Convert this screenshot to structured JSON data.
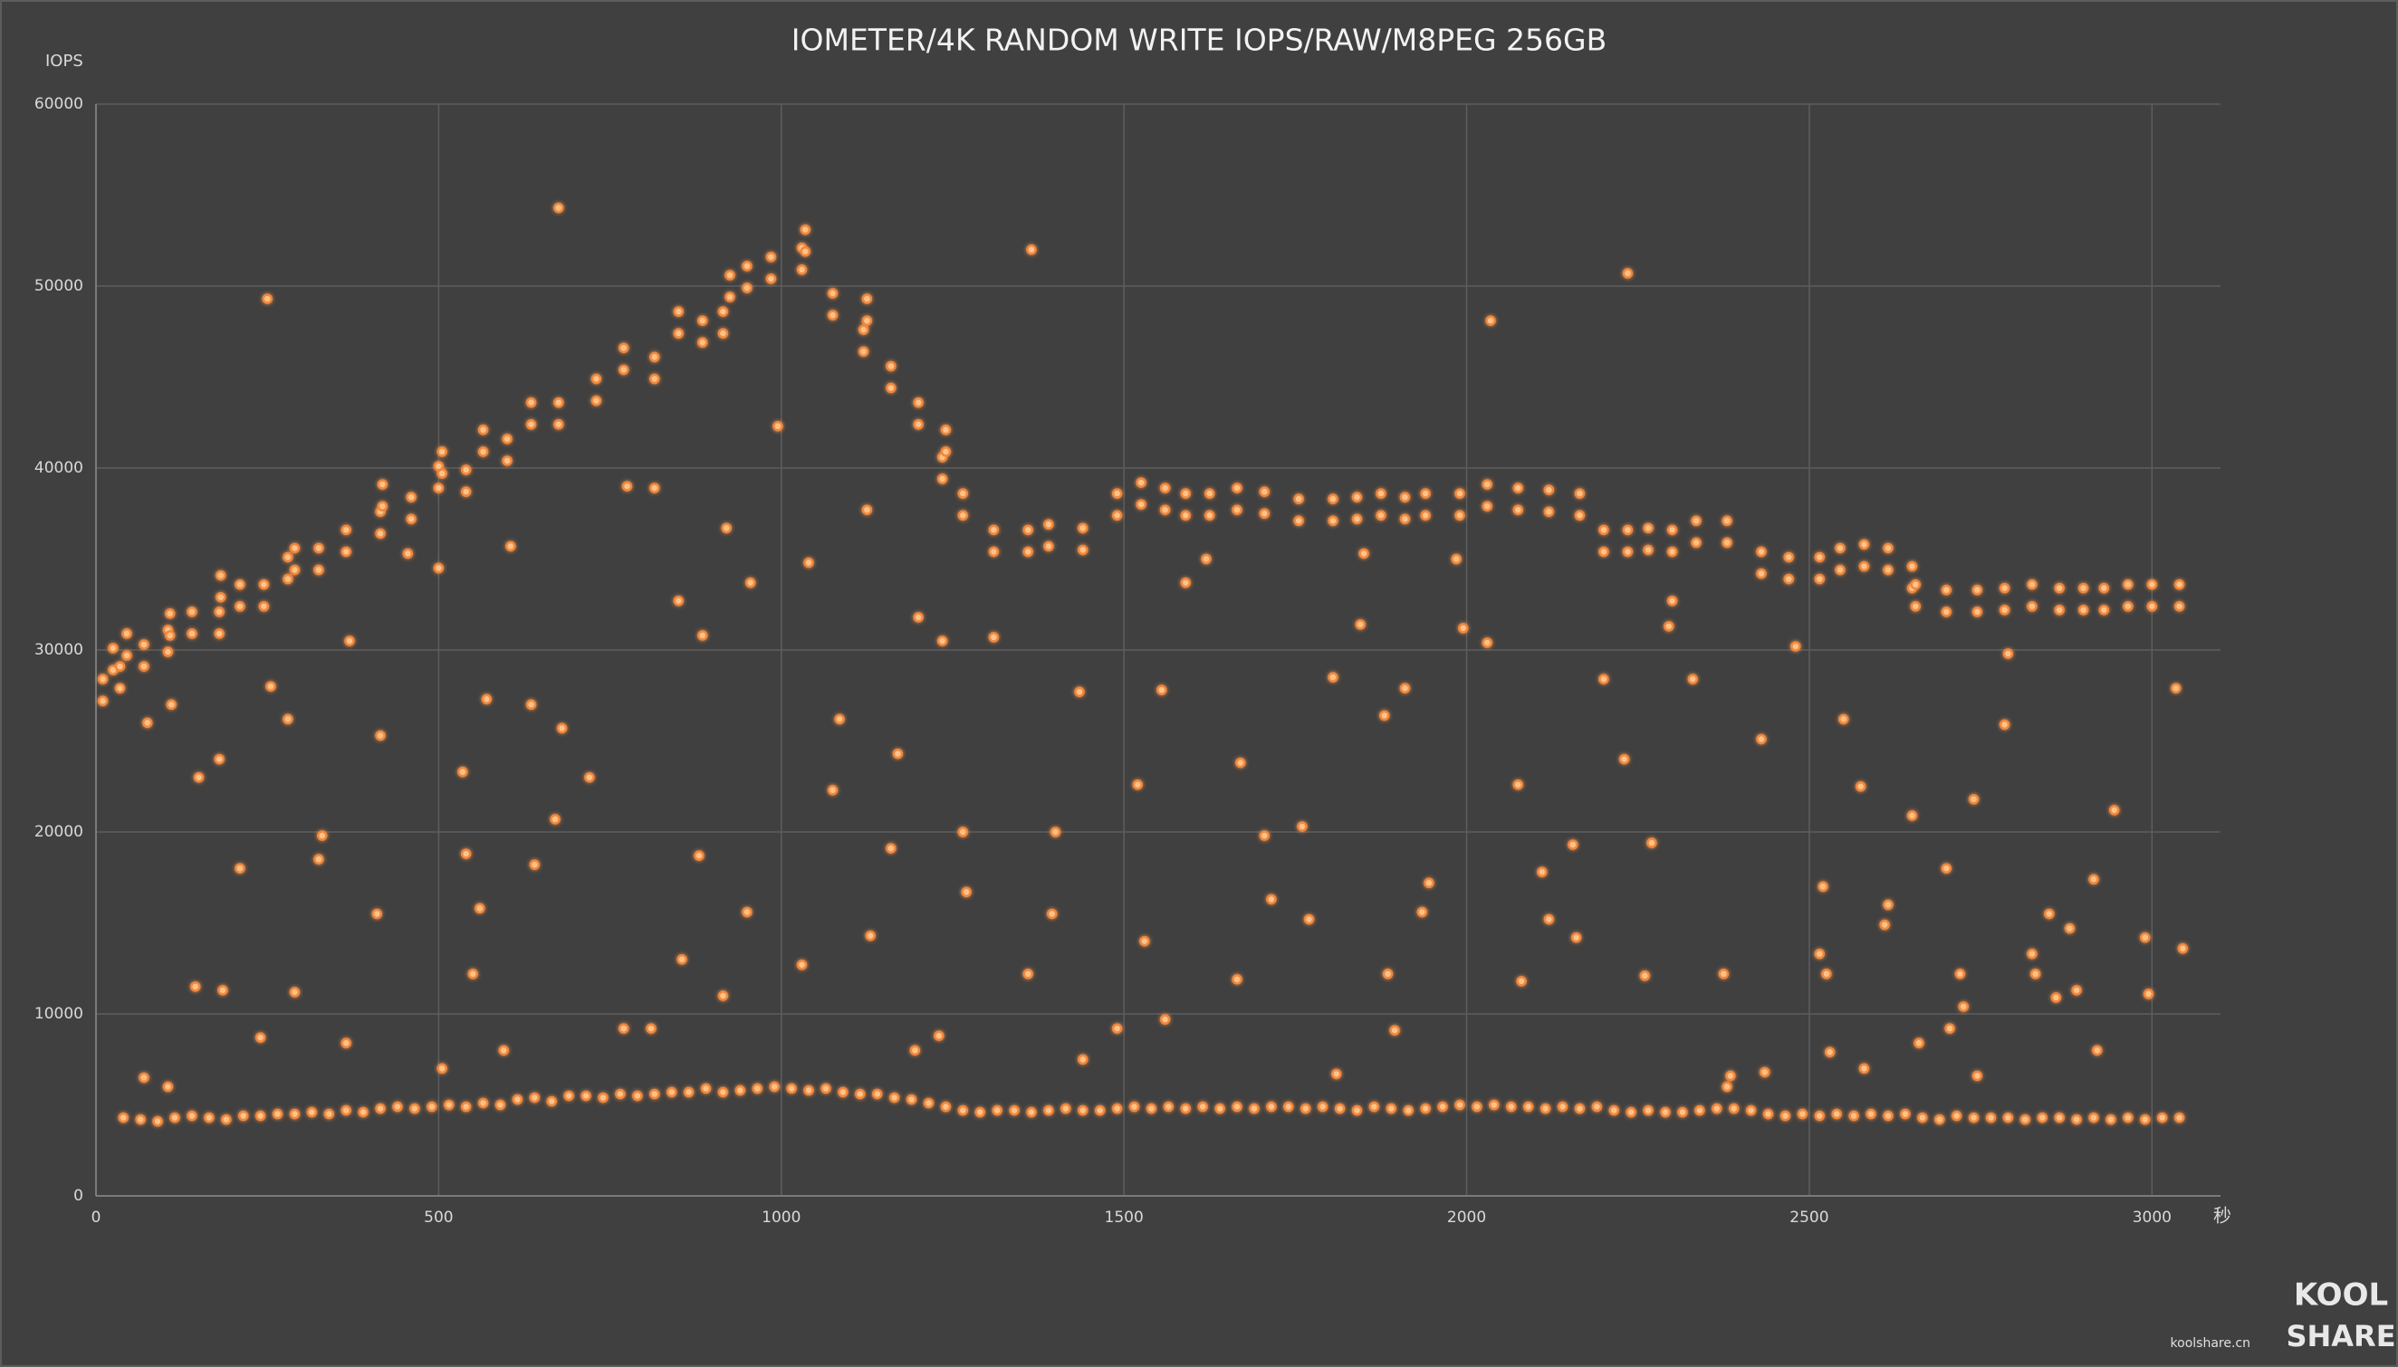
{
  "chart_data": {
    "type": "scatter",
    "title": "IOMETER/4K RANDOM WRITE IOPS/RAW/M8PEG 256GB",
    "y_label": "IOPS",
    "x_label": "秒",
    "watermark": {
      "logo_top": "KOOL",
      "logo_bottom": "SHARE",
      "site": "koolshare.cn"
    },
    "color": "#f0883c",
    "grid": true,
    "xlim": [
      0,
      3100
    ],
    "xticks": [
      0,
      500,
      1000,
      1500,
      2000,
      2500,
      3000
    ],
    "ylim": [
      0,
      60000
    ],
    "yticks": [
      0,
      10000,
      20000,
      30000,
      40000,
      50000,
      60000
    ],
    "x": [
      40,
      65,
      90,
      115,
      140,
      165,
      190,
      215,
      240,
      265,
      290,
      315,
      340,
      365,
      390,
      415,
      440,
      465,
      490,
      515,
      540,
      565,
      590,
      615,
      640,
      665,
      690,
      715,
      740,
      765,
      790,
      815,
      840,
      865,
      890,
      915,
      940,
      965,
      990,
      1015,
      1040,
      1065,
      1090,
      1115,
      1140,
      1165,
      1190,
      1215,
      1240,
      1265,
      1290,
      1315,
      1340,
      1365,
      1390,
      1415,
      1440,
      1465,
      1490,
      1515,
      1540,
      1565,
      1590,
      1615,
      1640,
      1665,
      1690,
      1715,
      1740,
      1765,
      1790,
      1815,
      1840,
      1865,
      1890,
      1915,
      1940,
      1965,
      1990,
      2015,
      2040,
      2065,
      2090,
      2115,
      2140,
      2165,
      2190,
      2215,
      2240,
      2265,
      2290,
      2315,
      2340,
      2365,
      2390,
      2415,
      2440,
      2465,
      2490,
      2515,
      2540,
      2565,
      2590,
      2615,
      2640,
      2665,
      2690,
      2715,
      2740,
      2765,
      2790,
      2815,
      2840,
      2865,
      2890,
      2915,
      2940,
      2965,
      2990,
      3015,
      3040,
      10,
      10,
      25,
      25,
      35,
      35,
      45,
      45,
      70,
      70,
      105,
      105,
      108,
      108,
      140,
      140,
      180,
      180,
      182,
      182,
      210,
      210,
      245,
      245,
      280,
      280,
      290,
      290,
      325,
      325,
      365,
      365,
      415,
      415,
      418,
      418,
      460,
      460,
      500,
      500,
      505,
      505,
      540,
      540,
      565,
      565,
      600,
      600,
      635,
      635,
      675,
      675,
      730,
      730,
      770,
      770,
      815,
      815,
      850,
      850,
      885,
      885,
      915,
      915,
      925,
      925,
      950,
      950,
      985,
      985,
      1030,
      1030,
      1035,
      1035,
      1075,
      1075,
      1120,
      1120,
      1125,
      1125,
      1160,
      1160,
      1200,
      1200,
      1235,
      1235,
      1240,
      1240,
      1265,
      1265,
      1310,
      1310,
      1360,
      1360,
      1390,
      1390,
      1440,
      1440,
      1490,
      1490,
      1525,
      1525,
      1560,
      1560,
      1590,
      1590,
      1625,
      1625,
      1665,
      1665,
      1705,
      1705,
      1755,
      1755,
      1805,
      1805,
      1840,
      1840,
      1875,
      1875,
      1910,
      1910,
      1940,
      1940,
      1990,
      1990,
      2030,
      2030,
      2075,
      2075,
      2120,
      2120,
      2165,
      2165,
      2200,
      2200,
      2235,
      2235,
      2265,
      2265,
      2300,
      2300,
      2335,
      2335,
      2380,
      2380,
      2430,
      2430,
      2470,
      2470,
      2515,
      2515,
      2545,
      2545,
      2580,
      2580,
      2615,
      2615,
      2650,
      2650,
      2655,
      2655,
      2700,
      2700,
      2745,
      2745,
      2785,
      2785,
      2825,
      2825,
      2865,
      2865,
      2900,
      2900,
      2930,
      2930,
      2965,
      2965,
      3000,
      3000,
      3040,
      3040,
      75,
      70,
      105,
      110,
      145,
      150,
      180,
      185,
      210,
      240,
      250,
      255,
      280,
      290,
      325,
      330,
      365,
      370,
      410,
      415,
      455,
      500,
      505,
      535,
      540,
      550,
      560,
      570,
      595,
      605,
      635,
      640,
      670,
      675,
      680,
      720,
      770,
      775,
      810,
      815,
      850,
      855,
      880,
      885,
      915,
      920,
      950,
      955,
      995,
      1030,
      1040,
      1075,
      1085,
      1125,
      1130,
      1160,
      1170,
      1195,
      1200,
      1230,
      1235,
      1265,
      1270,
      1310,
      1360,
      1365,
      1395,
      1400,
      1435,
      1440,
      1490,
      1520,
      1530,
      1555,
      1560,
      1590,
      1620,
      1665,
      1670,
      1705,
      1715,
      1760,
      1770,
      1805,
      1810,
      1845,
      1850,
      1880,
      1885,
      1895,
      1910,
      1935,
      1945,
      1985,
      1995,
      2030,
      2035,
      2075,
      2080,
      2110,
      2120,
      2155,
      2160,
      2200,
      2230,
      2235,
      2260,
      2270,
      2295,
      2300,
      2330,
      2375,
      2385,
      2430,
      2435,
      2480,
      2515,
      2520,
      2525,
      2530,
      2550,
      2575,
      2580,
      2610,
      2615,
      2650,
      2660,
      2700,
      2705,
      2720,
      2725,
      2740,
      2745,
      2785,
      2790,
      2825,
      2830,
      2850,
      2860,
      2880,
      2890,
      2915,
      2920,
      2945,
      2990,
      2995,
      3035,
      3045,
      2380
    ],
    "values": [
      4300,
      4200,
      4100,
      4300,
      4400,
      4300,
      4200,
      4400,
      4400,
      4500,
      4500,
      4600,
      4500,
      4700,
      4600,
      4800,
      4900,
      4800,
      4900,
      5000,
      4900,
      5100,
      5000,
      5300,
      5400,
      5200,
      5500,
      5500,
      5400,
      5600,
      5500,
      5600,
      5700,
      5700,
      5900,
      5700,
      5800,
      5900,
      6000,
      5900,
      5800,
      5900,
      5700,
      5600,
      5600,
      5400,
      5300,
      5100,
      4900,
      4700,
      4600,
      4700,
      4700,
      4600,
      4700,
      4800,
      4700,
      4700,
      4800,
      4900,
      4800,
      4900,
      4800,
      4900,
      4800,
      4900,
      4800,
      4900,
      4900,
      4800,
      4900,
      4800,
      4700,
      4900,
      4800,
      4700,
      4800,
      4900,
      5000,
      4900,
      5000,
      4900,
      4900,
      4800,
      4900,
      4800,
      4900,
      4700,
      4600,
      4700,
      4600,
      4600,
      4700,
      4800,
      4800,
      4700,
      4500,
      4400,
      4500,
      4400,
      4500,
      4400,
      4500,
      4400,
      4500,
      4300,
      4200,
      4400,
      4300,
      4300,
      4300,
      4200,
      4300,
      4300,
      4200,
      4300,
      4200,
      4300,
      4200,
      4300,
      4300,
      27200,
      28400,
      28900,
      30100,
      27900,
      29100,
      29700,
      30900,
      29100,
      30300,
      29900,
      31100,
      30800,
      32000,
      30900,
      32100,
      30900,
      32100,
      32900,
      34100,
      32400,
      33600,
      32400,
      33600,
      33900,
      35100,
      34400,
      35600,
      34400,
      35600,
      35400,
      36600,
      36400,
      37600,
      37900,
      39100,
      37200,
      38400,
      38900,
      40100,
      39700,
      40900,
      38700,
      39900,
      40900,
      42100,
      40400,
      41600,
      42400,
      43600,
      42400,
      43600,
      43700,
      44900,
      45400,
      46600,
      44900,
      46100,
      47400,
      48600,
      46900,
      48100,
      47400,
      48600,
      49400,
      50600,
      49900,
      51100,
      50400,
      51600,
      50900,
      52100,
      51900,
      53100,
      48400,
      49600,
      46400,
      47600,
      48100,
      49300,
      44400,
      45600,
      42400,
      43600,
      39400,
      40600,
      40900,
      42100,
      37400,
      38600,
      35400,
      36600,
      35400,
      36600,
      35700,
      36900,
      35500,
      36700,
      37400,
      38600,
      38000,
      39200,
      37700,
      38900,
      37400,
      38600,
      37400,
      38600,
      37700,
      38900,
      37500,
      38700,
      37100,
      38300,
      37100,
      38300,
      37200,
      38400,
      37400,
      38600,
      37200,
      38400,
      37400,
      38600,
      37400,
      38600,
      37900,
      39100,
      37700,
      38900,
      37600,
      38800,
      37400,
      38600,
      35400,
      36600,
      35400,
      36600,
      35500,
      36700,
      35400,
      36600,
      35900,
      37100,
      35900,
      37100,
      34200,
      35400,
      33900,
      35100,
      33900,
      35100,
      34400,
      35600,
      34600,
      35800,
      34400,
      35600,
      33400,
      34600,
      32400,
      33600,
      32100,
      33300,
      32100,
      33300,
      32200,
      33400,
      32400,
      33600,
      32200,
      33400,
      32200,
      33400,
      32200,
      33400,
      32400,
      33600,
      32400,
      33600,
      32400,
      33600,
      26000,
      6500,
      6000,
      27000,
      11500,
      23000,
      24000,
      11300,
      18000,
      8700,
      49300,
      28000,
      26200,
      11200,
      18500,
      19800,
      8400,
      30500,
      15500,
      25300,
      35300,
      34500,
      7000,
      23300,
      18800,
      12200,
      15800,
      27300,
      8000,
      35700,
      27000,
      18200,
      20700,
      54300,
      25700,
      23000,
      9200,
      39000,
      9200,
      38900,
      32700,
      13000,
      18700,
      30800,
      11000,
      36700,
      15600,
      33700,
      42300,
      12700,
      34800,
      22300,
      26200,
      37700,
      14300,
      19100,
      24300,
      8000,
      31800,
      8800,
      30500,
      20000,
      16700,
      30700,
      12200,
      52000,
      15500,
      20000,
      27700,
      7500,
      9200,
      22600,
      14000,
      27800,
      9700,
      33700,
      35000,
      11900,
      23800,
      19800,
      16300,
      20300,
      15200,
      28500,
      6700,
      31400,
      35300,
      26400,
      12200,
      9100,
      27900,
      15600,
      17200,
      35000,
      31200,
      30400,
      48100,
      22600,
      11800,
      17800,
      15200,
      19300,
      14200,
      28400,
      24000,
      50700,
      12100,
      19400,
      31300,
      32700,
      28400,
      12200,
      6600,
      25100,
      6800,
      30200,
      13300,
      17000,
      12200,
      7900,
      26200,
      22500,
      7000,
      14900,
      16000,
      20900,
      8400,
      18000,
      9200,
      12200,
      10400,
      21800,
      6600,
      25900,
      29800,
      13300,
      12200,
      15500,
      10900,
      14700,
      11300,
      17400,
      8000,
      21200,
      14200,
      11100,
      27900,
      13600,
      6000
    ]
  }
}
